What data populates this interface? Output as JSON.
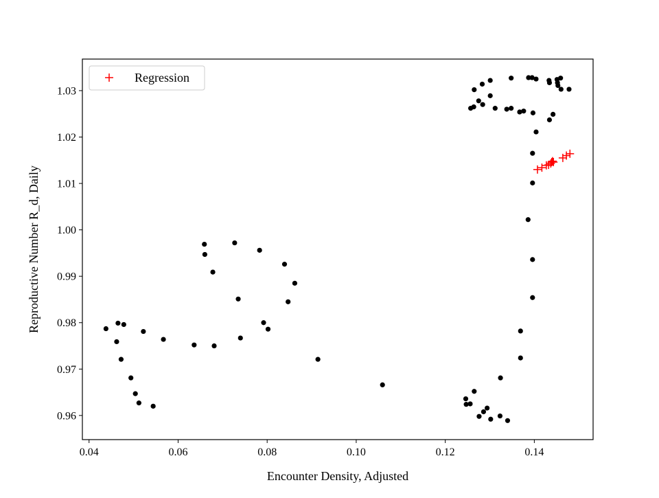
{
  "chart_data": {
    "type": "scatter",
    "xlabel": "Encounter Density, Adjusted",
    "ylabel": "Reproductive Number R_d, Daily",
    "xlim": [
      0.0385,
      0.1532
    ],
    "ylim": [
      0.9548,
      1.0368
    ],
    "x_ticks": [
      0.04,
      0.06,
      0.08,
      0.1,
      0.12,
      0.14
    ],
    "x_tick_labels": [
      "0.04",
      "0.06",
      "0.08",
      "0.10",
      "0.12",
      "0.14"
    ],
    "y_ticks": [
      0.96,
      0.97,
      0.98,
      0.99,
      1.0,
      1.01,
      1.02,
      1.03
    ],
    "y_tick_labels": [
      "0.96",
      "0.97",
      "0.98",
      "0.99",
      "1.00",
      "1.01",
      "1.02",
      "1.03"
    ],
    "grid": false,
    "legend": {
      "position": "top-left",
      "entries": [
        "Regression"
      ]
    },
    "series": [
      {
        "name": "",
        "marker": "dot",
        "color": "#000000",
        "points": [
          [
            0.0438,
            0.9787
          ],
          [
            0.0462,
            0.9759
          ],
          [
            0.0465,
            0.9799
          ],
          [
            0.0478,
            0.9796
          ],
          [
            0.0472,
            0.9721
          ],
          [
            0.0494,
            0.9681
          ],
          [
            0.0504,
            0.9647
          ],
          [
            0.0512,
            0.9627
          ],
          [
            0.0522,
            0.9781
          ],
          [
            0.0544,
            0.962
          ],
          [
            0.0567,
            0.9764
          ],
          [
            0.0636,
            0.9752
          ],
          [
            0.0659,
            0.9969
          ],
          [
            0.066,
            0.9947
          ],
          [
            0.0678,
            0.9909
          ],
          [
            0.0681,
            0.975
          ],
          [
            0.0727,
            0.9972
          ],
          [
            0.0735,
            0.9851
          ],
          [
            0.074,
            0.9767
          ],
          [
            0.0783,
            0.9956
          ],
          [
            0.0792,
            0.98
          ],
          [
            0.0802,
            0.9786
          ],
          [
            0.0839,
            0.9926
          ],
          [
            0.0847,
            0.9845
          ],
          [
            0.0862,
            0.9885
          ],
          [
            0.0914,
            0.9721
          ],
          [
            0.1059,
            0.9666
          ],
          [
            0.1246,
            0.9636
          ],
          [
            0.1247,
            0.9624
          ],
          [
            0.1256,
            0.9625
          ],
          [
            0.1265,
            0.9652
          ],
          [
            0.1276,
            0.9598
          ],
          [
            0.1286,
            0.9608
          ],
          [
            0.1294,
            0.9616
          ],
          [
            0.1302,
            0.9592
          ],
          [
            0.1323,
            0.9599
          ],
          [
            0.134,
            0.9589
          ],
          [
            0.1324,
            0.9681
          ],
          [
            0.1369,
            0.9724
          ],
          [
            0.1369,
            0.9782
          ],
          [
            0.1396,
            0.9854
          ],
          [
            0.1396,
            0.9936
          ],
          [
            0.1386,
            1.0022
          ],
          [
            0.1396,
            1.0101
          ],
          [
            0.1396,
            1.0165
          ],
          [
            0.1404,
            1.0211
          ],
          [
            0.1257,
            1.0262
          ],
          [
            0.1264,
            1.0265
          ],
          [
            0.1275,
            1.0278
          ],
          [
            0.1284,
            1.027
          ],
          [
            0.1301,
            1.0289
          ],
          [
            0.1312,
            1.0262
          ],
          [
            0.1338,
            1.026
          ],
          [
            0.1348,
            1.0262
          ],
          [
            0.1367,
            1.0254
          ],
          [
            0.1376,
            1.0256
          ],
          [
            0.1397,
            1.0252
          ],
          [
            0.1434,
            1.0237
          ],
          [
            0.1442,
            1.0249
          ],
          [
            0.1265,
            1.0302
          ],
          [
            0.1283,
            1.0314
          ],
          [
            0.1301,
            1.0322
          ],
          [
            0.1348,
            1.0327
          ],
          [
            0.1387,
            1.0328
          ],
          [
            0.1395,
            1.0328
          ],
          [
            0.1404,
            1.0325
          ],
          [
            0.1433,
            1.0322
          ],
          [
            0.1434,
            1.0317
          ],
          [
            0.1451,
            1.0324
          ],
          [
            0.1452,
            1.0317
          ],
          [
            0.1453,
            1.0311
          ],
          [
            0.1459,
            1.0327
          ],
          [
            0.146,
            1.0303
          ],
          [
            0.1478,
            1.0303
          ]
        ]
      },
      {
        "name": "Regression",
        "marker": "plus",
        "color": "#ff0000",
        "points": [
          [
            0.1407,
            1.013
          ],
          [
            0.1417,
            1.0134
          ],
          [
            0.1427,
            1.0139
          ],
          [
            0.1432,
            1.014
          ],
          [
            0.1437,
            1.0143
          ],
          [
            0.1439,
            1.0146
          ],
          [
            0.1441,
            1.0148
          ],
          [
            0.1443,
            1.0146
          ],
          [
            0.1464,
            1.0155
          ],
          [
            0.1472,
            1.016
          ],
          [
            0.148,
            1.0164
          ]
        ]
      }
    ]
  }
}
